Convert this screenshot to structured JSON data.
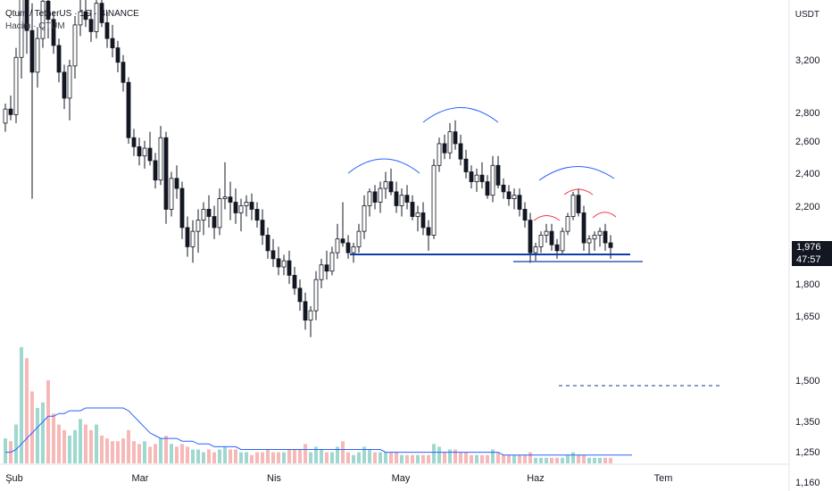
{
  "header": {
    "symbol_line": "Qtum / TetherUS · 1G · BINANCE",
    "volume_line": "Hacim · QTUM"
  },
  "axis": {
    "unit": "USDT",
    "y_ticks": [
      "3,200",
      "2,800",
      "2,600",
      "2,400",
      "2,200",
      "1,800",
      "1,650",
      "1,500",
      "1,350",
      "1,250",
      "1,160"
    ],
    "x_ticks": [
      "Şub",
      "Mar",
      "Nis",
      "May",
      "Haz",
      "Tem"
    ]
  },
  "last_price": {
    "value": "1,976",
    "countdown": "47:57"
  },
  "colors": {
    "bull_body": "#ffffff",
    "bear_body": "#131722",
    "candle_border": "#131722",
    "pattern_blue": "#2962ff",
    "pattern_red": "#f23645",
    "neckline": "#0d3ea8",
    "vol_up": "#9fd8cf",
    "vol_down": "#f7b8b8",
    "vol_ma": "#2962ff",
    "dashed_level": "#1e3a8a"
  },
  "chart_data": {
    "type": "candlestick",
    "title": "Qtum / TetherUS · 1G · BINANCE",
    "ylabel": "USDT",
    "y_scale": "log",
    "ylim": [
      1110,
      4300
    ],
    "x_months": [
      "Şub",
      "Mar",
      "Nis",
      "May",
      "Haz",
      "Tem"
    ],
    "ohlc": [
      [
        2.72,
        2.86,
        2.66,
        2.82
      ],
      [
        2.82,
        2.92,
        2.74,
        2.78
      ],
      [
        2.78,
        3.3,
        2.72,
        3.22
      ],
      [
        3.22,
        4.15,
        3.05,
        3.8
      ],
      [
        3.8,
        3.95,
        3.25,
        3.45
      ],
      [
        3.45,
        3.7,
        2.24,
        3.1
      ],
      [
        3.1,
        3.48,
        2.98,
        3.38
      ],
      [
        3.38,
        3.9,
        3.3,
        3.72
      ],
      [
        3.72,
        4.05,
        3.38,
        3.55
      ],
      [
        3.55,
        3.62,
        3.25,
        3.32
      ],
      [
        3.32,
        3.38,
        3.02,
        3.1
      ],
      [
        3.1,
        3.16,
        2.82,
        2.9
      ],
      [
        2.9,
        3.2,
        2.74,
        3.15
      ],
      [
        3.15,
        3.58,
        3.05,
        3.5
      ],
      [
        3.5,
        3.86,
        3.4,
        3.62
      ],
      [
        3.62,
        3.82,
        3.48,
        3.55
      ],
      [
        3.55,
        3.64,
        3.35,
        3.44
      ],
      [
        3.44,
        3.78,
        3.38,
        3.7
      ],
      [
        3.7,
        3.86,
        3.48,
        3.52
      ],
      [
        3.52,
        3.62,
        3.3,
        3.38
      ],
      [
        3.38,
        3.5,
        3.22,
        3.3
      ],
      [
        3.3,
        3.36,
        3.1,
        3.18
      ],
      [
        3.18,
        3.24,
        2.95,
        3.02
      ],
      [
        3.02,
        3.06,
        2.58,
        2.62
      ],
      [
        2.62,
        2.68,
        2.5,
        2.56
      ],
      [
        2.56,
        2.62,
        2.44,
        2.5
      ],
      [
        2.5,
        2.6,
        2.42,
        2.55
      ],
      [
        2.55,
        2.66,
        2.44,
        2.47
      ],
      [
        2.47,
        2.52,
        2.3,
        2.35
      ],
      [
        2.35,
        2.7,
        2.32,
        2.62
      ],
      [
        2.62,
        2.66,
        2.1,
        2.18
      ],
      [
        2.18,
        2.4,
        2.14,
        2.36
      ],
      [
        2.36,
        2.44,
        2.24,
        2.3
      ],
      [
        2.3,
        2.34,
        2.02,
        2.08
      ],
      [
        2.08,
        2.14,
        1.93,
        1.98
      ],
      [
        1.98,
        2.12,
        1.9,
        2.06
      ],
      [
        2.06,
        2.18,
        1.95,
        2.12
      ],
      [
        2.12,
        2.22,
        2.04,
        2.18
      ],
      [
        2.18,
        2.26,
        2.08,
        2.14
      ],
      [
        2.14,
        2.2,
        2.02,
        2.08
      ],
      [
        2.08,
        2.3,
        2.04,
        2.24
      ],
      [
        2.24,
        2.46,
        2.18,
        2.25
      ],
      [
        2.25,
        2.34,
        2.12,
        2.22
      ],
      [
        2.22,
        2.3,
        2.1,
        2.16
      ],
      [
        2.16,
        2.24,
        2.06,
        2.2
      ],
      [
        2.2,
        2.26,
        2.14,
        2.22
      ],
      [
        2.22,
        2.27,
        2.12,
        2.18
      ],
      [
        2.18,
        2.22,
        2.08,
        2.12
      ],
      [
        2.12,
        2.18,
        1.99,
        2.04
      ],
      [
        2.04,
        2.08,
        1.92,
        1.96
      ],
      [
        1.96,
        2.02,
        1.88,
        1.92
      ],
      [
        1.92,
        1.98,
        1.84,
        1.88
      ],
      [
        1.88,
        1.94,
        1.84,
        1.91
      ],
      [
        1.91,
        1.96,
        1.8,
        1.84
      ],
      [
        1.84,
        1.88,
        1.75,
        1.78
      ],
      [
        1.78,
        1.82,
        1.68,
        1.72
      ],
      [
        1.72,
        1.76,
        1.6,
        1.64
      ],
      [
        1.64,
        1.7,
        1.57,
        1.68
      ],
      [
        1.68,
        1.86,
        1.64,
        1.82
      ],
      [
        1.82,
        1.92,
        1.78,
        1.89
      ],
      [
        1.89,
        1.96,
        1.82,
        1.86
      ],
      [
        1.86,
        1.98,
        1.84,
        1.95
      ],
      [
        1.95,
        2.1,
        1.92,
        2.02
      ],
      [
        2.02,
        2.22,
        1.98,
        2.0
      ],
      [
        2.0,
        2.04,
        1.92,
        1.95
      ],
      [
        1.95,
        2.0,
        1.9,
        1.98
      ],
      [
        1.98,
        2.1,
        1.95,
        2.06
      ],
      [
        2.06,
        2.26,
        2.02,
        2.2
      ],
      [
        2.2,
        2.3,
        2.14,
        2.28
      ],
      [
        2.28,
        2.32,
        2.18,
        2.22
      ],
      [
        2.22,
        2.34,
        2.16,
        2.3
      ],
      [
        2.3,
        2.4,
        2.24,
        2.34
      ],
      [
        2.34,
        2.42,
        2.26,
        2.28
      ],
      [
        2.28,
        2.34,
        2.16,
        2.2
      ],
      [
        2.2,
        2.3,
        2.14,
        2.26
      ],
      [
        2.26,
        2.32,
        2.18,
        2.22
      ],
      [
        2.22,
        2.26,
        2.12,
        2.14
      ],
      [
        2.14,
        2.2,
        2.06,
        2.16
      ],
      [
        2.16,
        2.22,
        2.04,
        2.08
      ],
      [
        2.08,
        2.12,
        1.96,
        2.04
      ],
      [
        2.04,
        2.48,
        2.02,
        2.44
      ],
      [
        2.44,
        2.62,
        2.4,
        2.58
      ],
      [
        2.58,
        2.64,
        2.48,
        2.52
      ],
      [
        2.52,
        2.72,
        2.48,
        2.66
      ],
      [
        2.66,
        2.74,
        2.54,
        2.58
      ],
      [
        2.58,
        2.64,
        2.44,
        2.48
      ],
      [
        2.48,
        2.54,
        2.36,
        2.4
      ],
      [
        2.4,
        2.44,
        2.3,
        2.34
      ],
      [
        2.34,
        2.42,
        2.28,
        2.38
      ],
      [
        2.38,
        2.46,
        2.3,
        2.34
      ],
      [
        2.34,
        2.38,
        2.24,
        2.26
      ],
      [
        2.26,
        2.5,
        2.22,
        2.44
      ],
      [
        2.44,
        2.5,
        2.3,
        2.32
      ],
      [
        2.32,
        2.36,
        2.24,
        2.28
      ],
      [
        2.28,
        2.32,
        2.2,
        2.24
      ],
      [
        2.24,
        2.3,
        2.18,
        2.26
      ],
      [
        2.26,
        2.3,
        2.14,
        2.18
      ],
      [
        2.18,
        2.22,
        2.08,
        2.12
      ],
      [
        2.12,
        2.16,
        1.9,
        1.95
      ],
      [
        1.95,
        2.0,
        1.91,
        1.98
      ],
      [
        1.98,
        2.06,
        1.95,
        2.04
      ],
      [
        2.04,
        2.1,
        2.0,
        2.06
      ],
      [
        2.06,
        2.1,
        1.96,
        1.99
      ],
      [
        1.99,
        2.02,
        1.92,
        1.96
      ],
      [
        1.96,
        2.08,
        1.94,
        2.06
      ],
      [
        2.06,
        2.16,
        2.04,
        2.14
      ],
      [
        2.14,
        2.28,
        2.12,
        2.26
      ],
      [
        2.26,
        2.3,
        2.14,
        2.16
      ],
      [
        2.16,
        2.2,
        1.96,
        2.0
      ],
      [
        2.0,
        2.04,
        1.94,
        2.02
      ],
      [
        2.02,
        2.06,
        1.96,
        2.04
      ],
      [
        2.04,
        2.08,
        1.98,
        2.06
      ],
      [
        2.06,
        2.1,
        1.96,
        2.0
      ],
      [
        2.0,
        2.04,
        1.92,
        1.976
      ]
    ],
    "volume": [
      [
        9,
        1
      ],
      [
        8,
        0
      ],
      [
        14,
        1
      ],
      [
        42,
        1
      ],
      [
        38,
        0
      ],
      [
        26,
        0
      ],
      [
        20,
        1
      ],
      [
        22,
        1
      ],
      [
        30,
        0
      ],
      [
        18,
        0
      ],
      [
        14,
        0
      ],
      [
        12,
        0
      ],
      [
        10,
        1
      ],
      [
        12,
        1
      ],
      [
        16,
        1
      ],
      [
        14,
        0
      ],
      [
        12,
        0
      ],
      [
        14,
        1
      ],
      [
        10,
        0
      ],
      [
        9,
        0
      ],
      [
        8,
        0
      ],
      [
        8,
        0
      ],
      [
        9,
        0
      ],
      [
        12,
        0
      ],
      [
        8,
        0
      ],
      [
        7,
        0
      ],
      [
        8,
        1
      ],
      [
        6,
        0
      ],
      [
        7,
        0
      ],
      [
        9,
        1
      ],
      [
        10,
        0
      ],
      [
        7,
        1
      ],
      [
        6,
        0
      ],
      [
        7,
        0
      ],
      [
        6,
        0
      ],
      [
        5,
        1
      ],
      [
        5,
        1
      ],
      [
        4,
        1
      ],
      [
        5,
        0
      ],
      [
        4,
        0
      ],
      [
        5,
        1
      ],
      [
        6,
        1
      ],
      [
        5,
        0
      ],
      [
        5,
        0
      ],
      [
        4,
        1
      ],
      [
        4,
        1
      ],
      [
        3,
        0
      ],
      [
        4,
        0
      ],
      [
        4,
        0
      ],
      [
        5,
        0
      ],
      [
        4,
        0
      ],
      [
        4,
        0
      ],
      [
        4,
        1
      ],
      [
        5,
        0
      ],
      [
        5,
        0
      ],
      [
        5,
        0
      ],
      [
        7,
        0
      ],
      [
        4,
        1
      ],
      [
        6,
        1
      ],
      [
        5,
        1
      ],
      [
        4,
        0
      ],
      [
        4,
        1
      ],
      [
        6,
        1
      ],
      [
        8,
        0
      ],
      [
        4,
        0
      ],
      [
        3,
        1
      ],
      [
        4,
        1
      ],
      [
        6,
        1
      ],
      [
        5,
        1
      ],
      [
        4,
        0
      ],
      [
        4,
        1
      ],
      [
        4,
        1
      ],
      [
        4,
        0
      ],
      [
        4,
        0
      ],
      [
        3,
        1
      ],
      [
        3,
        0
      ],
      [
        3,
        0
      ],
      [
        3,
        1
      ],
      [
        3,
        0
      ],
      [
        3,
        0
      ],
      [
        7,
        1
      ],
      [
        6,
        1
      ],
      [
        4,
        0
      ],
      [
        5,
        1
      ],
      [
        5,
        0
      ],
      [
        4,
        0
      ],
      [
        4,
        0
      ],
      [
        3,
        0
      ],
      [
        3,
        1
      ],
      [
        3,
        0
      ],
      [
        3,
        0
      ],
      [
        5,
        1
      ],
      [
        4,
        0
      ],
      [
        3,
        0
      ],
      [
        3,
        0
      ],
      [
        3,
        1
      ],
      [
        3,
        0
      ],
      [
        3,
        0
      ],
      [
        4,
        0
      ],
      [
        2,
        1
      ],
      [
        2,
        1
      ],
      [
        2,
        1
      ],
      [
        2,
        0
      ],
      [
        2,
        0
      ],
      [
        2,
        1
      ],
      [
        3,
        1
      ],
      [
        4,
        1
      ],
      [
        3,
        0
      ],
      [
        3,
        0
      ],
      [
        2,
        1
      ],
      [
        2,
        1
      ],
      [
        2,
        1
      ],
      [
        2,
        0
      ],
      [
        2,
        0
      ]
    ],
    "volume_ma": [
      4,
      4,
      5,
      7,
      9,
      11,
      13,
      15,
      17,
      17,
      18,
      18,
      19,
      19,
      19,
      20,
      20,
      20,
      20,
      20,
      20,
      20,
      20,
      19,
      17,
      15,
      13,
      11,
      10,
      9,
      9,
      9,
      9,
      8,
      8,
      8,
      7,
      7,
      7,
      6,
      6,
      6,
      6,
      6,
      5,
      5,
      5,
      5,
      5,
      5,
      5,
      5,
      5,
      5,
      5,
      5,
      5,
      5,
      5,
      5,
      5,
      5,
      5,
      5,
      5,
      5,
      5,
      5,
      5,
      5,
      5,
      4,
      4,
      4,
      4,
      4,
      4,
      4,
      4,
      4,
      4,
      4,
      4,
      4,
      4,
      4,
      4,
      4,
      4,
      4,
      4,
      4,
      4,
      3,
      3,
      3,
      3,
      3,
      3,
      3,
      3,
      3,
      3,
      3,
      3,
      3,
      3,
      3,
      3,
      3,
      3,
      3,
      3,
      3,
      3,
      3,
      3,
      3
    ]
  }
}
